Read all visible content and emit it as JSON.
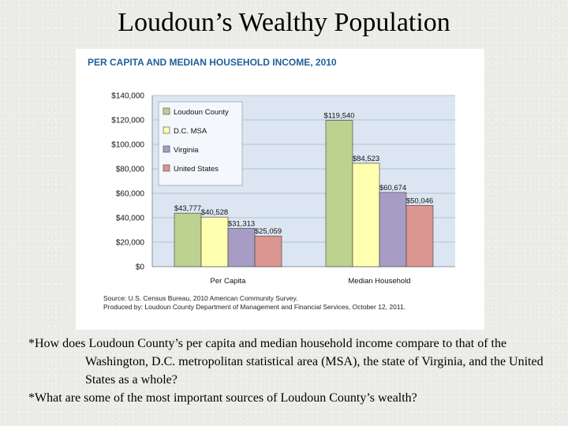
{
  "slide": {
    "title": "Loudoun’s Wealthy Population",
    "questions": [
      "How does Loudoun County’s per capita and median household income compare to that of the Washington, D.C. metropolitan statistical area (MSA), the state of Virginia, and the United States as a whole?",
      "What are some of the most important sources of Loudoun County’s wealth?"
    ]
  },
  "chart_data": {
    "type": "bar",
    "title": "PER CAPITA AND MEDIAN HOUSEHOLD INCOME, 2010",
    "categories": [
      "Per Capita",
      "Median Household"
    ],
    "series": [
      {
        "name": "Loudoun County",
        "values": [
          43777,
          119540
        ],
        "labels": [
          "$43,777",
          "$119,540"
        ],
        "color": "#bdd191"
      },
      {
        "name": "D.C. MSA",
        "values": [
          40528,
          84523
        ],
        "labels": [
          "$40,528",
          "$84,523"
        ],
        "color": "#ffffb0"
      },
      {
        "name": "Virginia",
        "values": [
          31313,
          60674
        ],
        "labels": [
          "$31,313",
          "$60,674"
        ],
        "color": "#a79dc4"
      },
      {
        "name": "United States",
        "values": [
          25059,
          50046
        ],
        "labels": [
          "$25,059",
          "$50,046"
        ],
        "color": "#db9692"
      }
    ],
    "ylim": [
      0,
      140000
    ],
    "yticks": [
      "$0",
      "$20,000",
      "$40,000",
      "$60,000",
      "$80,000",
      "$100,000",
      "$120,000",
      "$140,000"
    ],
    "grid": true,
    "legend": "top-left",
    "plot_background": "#dce6f2",
    "source": [
      "Source: U.S. Census Bureau, 2010 American Community Survey.",
      "Produced by: Loudoun County Department of Management and Financial Services, October 12, 2011."
    ]
  }
}
